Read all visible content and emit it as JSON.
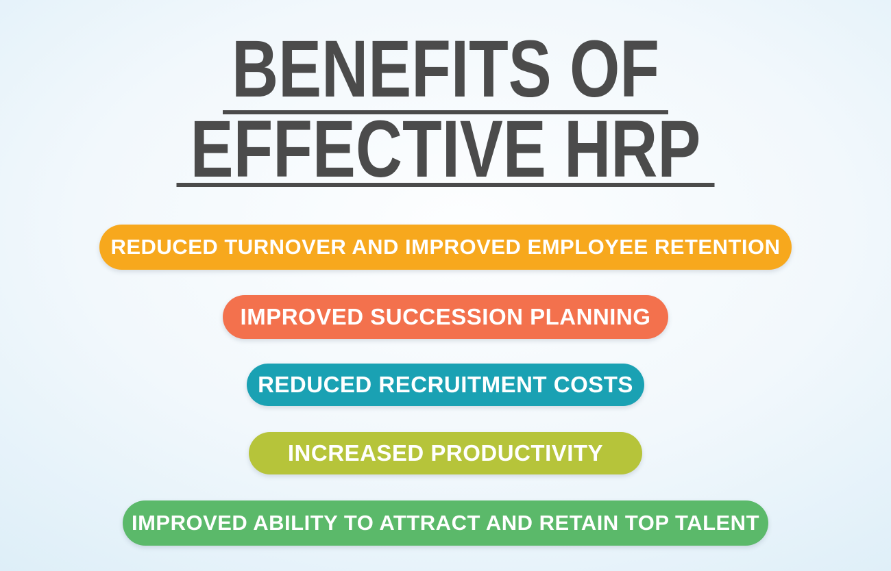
{
  "title": {
    "line1": "BENEFITS OF",
    "line2": "EFFECTIVE HRP",
    "color": "#4b4b4b",
    "underline_color": "#4b4b4b"
  },
  "background": {
    "center_color": "#fdfeff",
    "edge_color": "#d7ebf7"
  },
  "benefits": [
    {
      "label": "REDUCED TURNOVER AND IMPROVED EMPLOYEE RETENTION",
      "color": "#f7a81d",
      "text_color": "#ffffff"
    },
    {
      "label": "IMPROVED SUCCESSION PLANNING",
      "color": "#f3714d",
      "text_color": "#ffffff"
    },
    {
      "label": "REDUCED RECRUITMENT COSTS",
      "color": "#1aa1b3",
      "text_color": "#ffffff"
    },
    {
      "label": "INCREASED PRODUCTIVITY",
      "color": "#b6c43a",
      "text_color": "#ffffff"
    },
    {
      "label": "IMPROVED ABILITY TO ATTRACT AND RETAIN TOP TALENT",
      "color": "#5bb96a",
      "text_color": "#ffffff"
    }
  ]
}
